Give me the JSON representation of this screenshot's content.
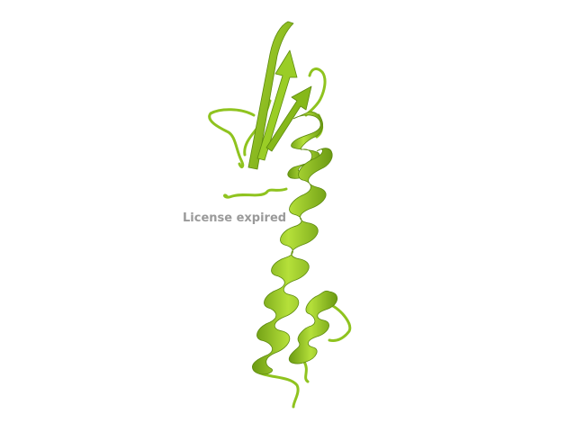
{
  "viewer": {
    "background": "#ffffff",
    "watermark": "License expired",
    "watermark_color": "#9a9a9a"
  },
  "structure": {
    "representation": "cartoon",
    "color": "#8fc31f",
    "highlight": "#b5e03a",
    "shadow": "#5d8a0e",
    "elements": [
      "beta-sheet",
      "long-alpha-helix",
      "short-alpha-helix",
      "loops"
    ]
  }
}
